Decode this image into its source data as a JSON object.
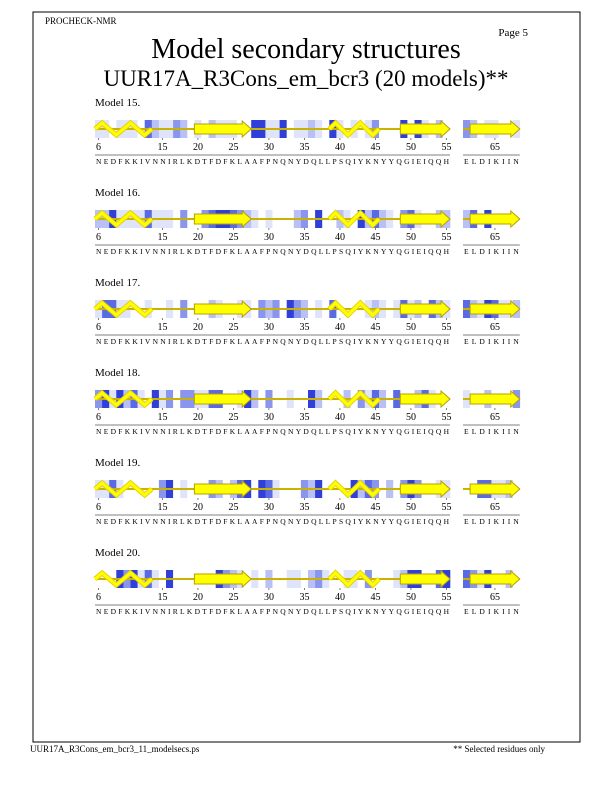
{
  "header": {
    "program": "PROCHECK-NMR",
    "page": "Page  5",
    "title": "Model secondary structures",
    "subtitle": "UUR17A_R3Cons_em_bcr3 (20 models)**"
  },
  "residue_ticks": [
    6,
    15,
    20,
    25,
    30,
    35,
    40,
    45,
    50,
    55,
    65
  ],
  "sequences": [
    "NEDFKKIVNNIRLKDTFDFKLAAFPNQNYDQLLPSQIYKNYYQGIEIQQH",
    "ELDIKIIN"
  ],
  "models": [
    "Model 15.",
    "Model 16.",
    "Model 17.",
    "Model 18.",
    "Model 19.",
    "Model 20."
  ],
  "footer": {
    "file": "UUR17A_R3Cons_em_bcr3_11_modelsecs.ps",
    "note": "** Selected residues only"
  }
}
